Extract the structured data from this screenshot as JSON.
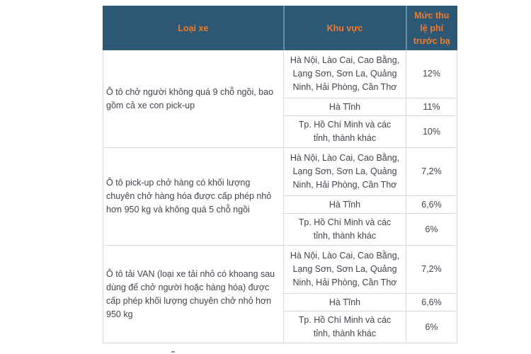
{
  "table": {
    "headers": {
      "vehicle_type": "Loại xe",
      "region": "Khu vực",
      "fee_rate": "Mức thu lệ phí trước bạ"
    },
    "groups": [
      {
        "vehicle": "Ô tô chở người không quá 9 chỗ ngồi, bao gồm cả xe con pick-up",
        "rows": [
          {
            "region": "Hà Nội, Lào Cai, Cao Bằng, Lạng Sơn, Sơn La, Quảng Ninh, Hải Phòng, Cần Thơ",
            "rate": "12%"
          },
          {
            "region": "Hà Tĩnh",
            "rate": "11%"
          },
          {
            "region": "Tp. Hồ Chí Minh và các tỉnh, thành khác",
            "rate": "10%"
          }
        ]
      },
      {
        "vehicle": "Ô tô pick-up chở hàng có khối lượng chuyên chở hàng hóa được cấp phép nhỏ hơn 950 kg và không quá 5 chỗ ngồi",
        "rows": [
          {
            "region": "Hà Nội, Lào Cai, Cao Bằng, Lạng Sơn, Sơn La, Quảng Ninh, Hải Phòng, Cần Thơ",
            "rate": "7,2%"
          },
          {
            "region": "Hà Tĩnh",
            "rate": "6,6%"
          },
          {
            "region": "Tp. Hồ Chí Minh và các tỉnh, thành khác",
            "rate": "6%"
          }
        ]
      },
      {
        "vehicle": "Ô tô tải VAN (loại xe tải nhỏ có khoang sau dùng để chở người hoặc hàng hóa) được cấp phép khối lượng chuyên chở nhỏ hơn 950 kg",
        "rows": [
          {
            "region": "Hà Nội, Lào Cai, Cao Bằng, Lạng Sơn, Sơn La, Quảng Ninh, Hải Phòng, Cần Thơ",
            "rate": "7,2%"
          },
          {
            "region": "Hà Tĩnh",
            "rate": "6,6%"
          },
          {
            "region": "Tp. Hồ Chí Minh và các tỉnh, thành khác",
            "rate": "6%"
          }
        ]
      }
    ]
  },
  "colors": {
    "header_bg": "#2c5875",
    "header_text": "#ee7c2b",
    "header_divider": "#6a8ba5",
    "body_text": "#40444c",
    "border": "#d9d9d9"
  }
}
